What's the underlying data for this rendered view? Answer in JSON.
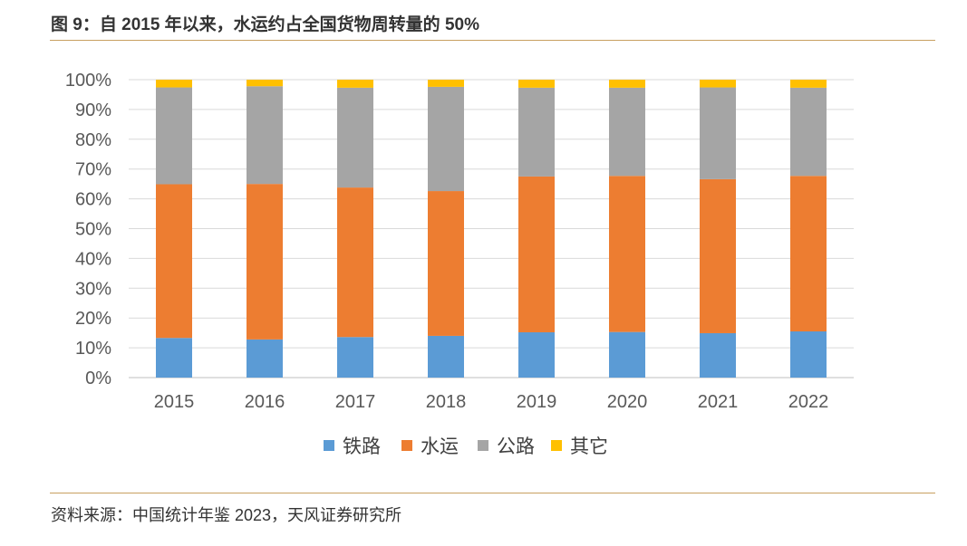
{
  "title": "图 9：自 2015 年以来，水运约占全国货物周转量的 50%",
  "source": "资料来源：中国统计年鉴 2023，天风证券研究所",
  "chart_data": {
    "type": "bar",
    "stacked": true,
    "categories": [
      "2015",
      "2016",
      "2017",
      "2018",
      "2019",
      "2020",
      "2021",
      "2022"
    ],
    "series": [
      {
        "name": "铁路",
        "color": "#5b9bd5",
        "values": [
          13.3,
          12.8,
          13.6,
          14.0,
          15.2,
          15.3,
          14.9,
          15.5
        ]
      },
      {
        "name": "水运",
        "color": "#ed7d31",
        "values": [
          51.6,
          52.2,
          50.2,
          48.6,
          52.3,
          52.4,
          51.7,
          52.2
        ]
      },
      {
        "name": "公路",
        "color": "#a5a5a5",
        "values": [
          32.5,
          32.8,
          33.5,
          35.0,
          29.8,
          29.6,
          30.8,
          29.6
        ]
      },
      {
        "name": "其它",
        "color": "#ffc000",
        "values": [
          2.6,
          2.2,
          2.7,
          2.4,
          2.7,
          2.7,
          2.6,
          2.7
        ]
      }
    ],
    "y_ticks": [
      "0%",
      "10%",
      "20%",
      "30%",
      "40%",
      "50%",
      "60%",
      "70%",
      "80%",
      "90%",
      "100%"
    ],
    "ylim": [
      0,
      100
    ],
    "grid": true,
    "legend_position": "bottom",
    "xlabel": "",
    "ylabel": ""
  }
}
